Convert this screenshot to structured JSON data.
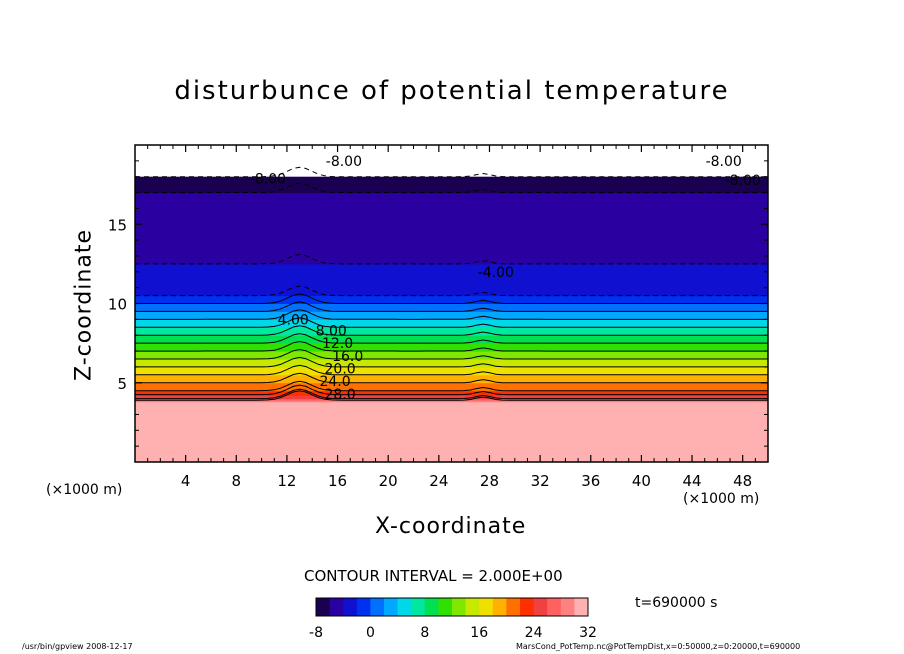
{
  "chart_data": {
    "type": "heatmap",
    "title": "disturbunce of potential temperature",
    "xlabel": "X-coordinate",
    "ylabel": "Z-coordinate",
    "x_unit": "(×1000 m)",
    "y_unit": "(×1000 m)",
    "xlim": [
      0,
      50
    ],
    "ylim": [
      0,
      20
    ],
    "x_ticks": [
      4,
      8,
      12,
      16,
      20,
      24,
      28,
      32,
      36,
      40,
      44,
      48
    ],
    "y_ticks": [
      5,
      10,
      15
    ],
    "contour_interval": "CONTOUR INTERVAL = 2.000E+00",
    "colorbar": {
      "min": -8,
      "max": 32,
      "ticks": [
        "-8",
        "0",
        "8",
        "16",
        "24",
        "32"
      ]
    },
    "colors": [
      "#1a0050",
      "#2a00a0",
      "#1010d0",
      "#0030f0",
      "#0070ff",
      "#00a8ff",
      "#00d8e8",
      "#00e8a0",
      "#00e050",
      "#30e000",
      "#80e800",
      "#c8e800",
      "#f0e000",
      "#ffb000",
      "#ff7000",
      "#ff3000",
      "#f04040",
      "#ff6060",
      "#ff8080",
      "#ffb0b0"
    ],
    "profile": [
      {
        "z": 0,
        "v": 30
      },
      {
        "z": 3.8,
        "v": 30
      },
      {
        "z": 4.0,
        "v": 26
      },
      {
        "z": 4.5,
        "v": 22
      },
      {
        "z": 5.5,
        "v": 18
      },
      {
        "z": 6.5,
        "v": 14
      },
      {
        "z": 7.5,
        "v": 10
      },
      {
        "z": 8.5,
        "v": 6
      },
      {
        "z": 9.5,
        "v": 2
      },
      {
        "z": 10.5,
        "v": -2
      },
      {
        "z": 12.5,
        "v": -4
      },
      {
        "z": 15.5,
        "v": -5
      },
      {
        "z": 17.0,
        "v": -6
      },
      {
        "z": 17.5,
        "v": -7
      },
      {
        "z": 18.0,
        "v": -8
      }
    ],
    "contour_labels": [
      {
        "text": "28.0",
        "x": 16.2,
        "z": 4.3
      },
      {
        "text": "24.0",
        "x": 15.8,
        "z": 5.1
      },
      {
        "text": "20.0",
        "x": 16.2,
        "z": 5.9
      },
      {
        "text": "16.0",
        "x": 16.8,
        "z": 6.7
      },
      {
        "text": "12.0",
        "x": 16.0,
        "z": 7.5
      },
      {
        "text": "8.00",
        "x": 15.5,
        "z": 8.3
      },
      {
        "text": "4.00",
        "x": 12.5,
        "z": 9.0
      },
      {
        "text": "-4.00",
        "x": 28.5,
        "z": 12.0
      },
      {
        "text": "-8.00",
        "x": 48.0,
        "z": 17.8
      },
      {
        "text": "-8.00",
        "x": 10.5,
        "z": 17.9
      },
      {
        "text": "-8.00",
        "x": 16.5,
        "z": 19.0
      },
      {
        "text": "-8.00",
        "x": 46.5,
        "z": 19.0
      }
    ]
  },
  "colorbar_labels": [
    "-8",
    "0",
    "8",
    "16",
    "24",
    "32"
  ],
  "time_label": "t=690000 s",
  "footer_left": "/usr/bin/gpview   2008-12-17",
  "footer_right": "MarsCond_PotTemp.nc@PotTempDist,x=0:50000,z=0:20000,t=690000"
}
